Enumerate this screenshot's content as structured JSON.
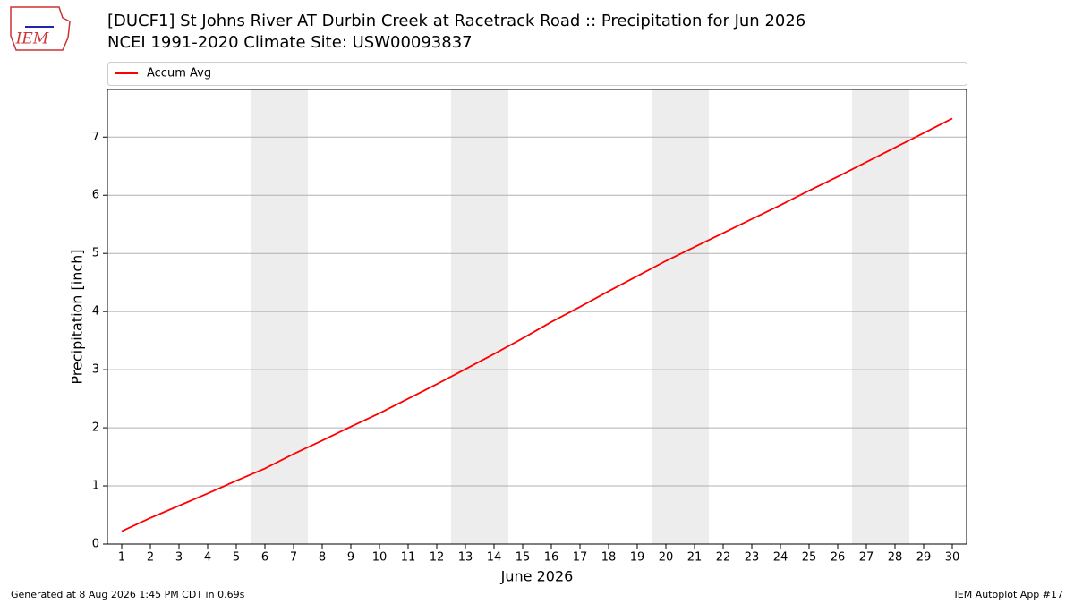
{
  "chart_data": {
    "type": "line",
    "title": "[DUCF1] St Johns River  AT Durbin Creek at Racetrack Road :: Precipitation for Jun 2026",
    "subtitle": "NCEI 1991-2020 Climate Site: USW00093837",
    "logo_text": "IEM",
    "x_label": "June 2026",
    "y_label": "Precipitation [inch]",
    "x": [
      1,
      2,
      3,
      4,
      5,
      6,
      7,
      8,
      9,
      10,
      11,
      12,
      13,
      14,
      15,
      16,
      17,
      18,
      19,
      20,
      21,
      22,
      23,
      24,
      25,
      26,
      27,
      28,
      29,
      30
    ],
    "series": [
      {
        "name": "Accum Avg",
        "color": "#ff0000",
        "values": [
          0.22,
          0.45,
          0.66,
          0.87,
          1.09,
          1.3,
          1.55,
          1.78,
          2.02,
          2.25,
          2.5,
          2.75,
          3.01,
          3.27,
          3.54,
          3.82,
          4.08,
          4.35,
          4.61,
          4.87,
          5.11,
          5.35,
          5.59,
          5.83,
          6.08,
          6.32,
          6.57,
          6.82,
          7.07,
          7.32
        ]
      }
    ],
    "shaded_spans": [
      [
        5.5,
        7.5
      ],
      [
        12.5,
        14.5
      ],
      [
        19.5,
        21.5
      ],
      [
        26.5,
        28.5
      ]
    ],
    "shade_color": "#ededed",
    "xlim": [
      0.5,
      30.5
    ],
    "xticks": [
      1,
      2,
      3,
      4,
      5,
      6,
      7,
      8,
      9,
      10,
      11,
      12,
      13,
      14,
      15,
      16,
      17,
      18,
      19,
      20,
      21,
      22,
      23,
      24,
      25,
      26,
      27,
      28,
      29,
      30
    ],
    "ylim": [
      0,
      7.82
    ],
    "yticks": [
      0,
      1,
      2,
      3,
      4,
      5,
      6,
      7
    ],
    "grid": true,
    "legend": "top",
    "footer_left": "Generated at 8 Aug 2026 1:45 PM CDT in 0.69s",
    "footer_right": "IEM Autoplot App #17"
  }
}
